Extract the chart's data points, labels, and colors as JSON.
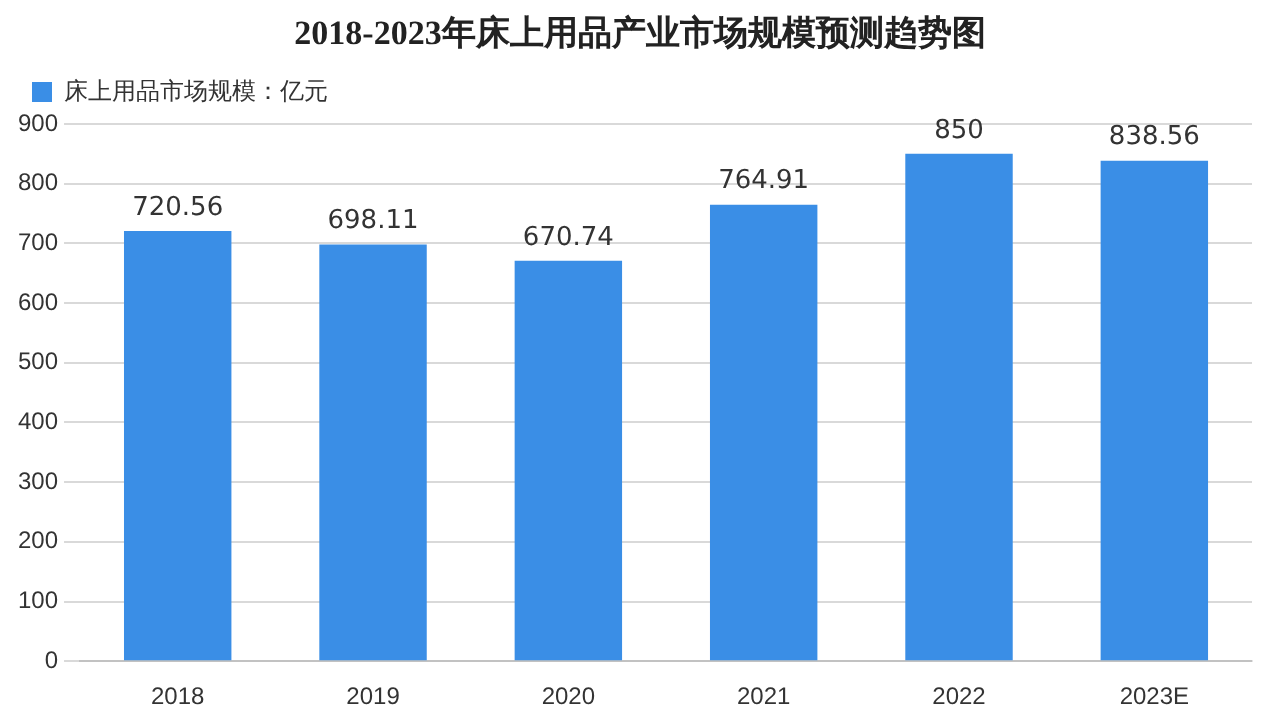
{
  "chart_data": {
    "type": "bar",
    "title": "2018-2023年床上用品产业市场规模预测趋势图",
    "categories": [
      "2018",
      "2019",
      "2020",
      "2021",
      "2022",
      "2023E"
    ],
    "series": [
      {
        "name": "床上用品市场规模：亿元",
        "color": "#3a8ee6",
        "values": [
          720.56,
          698.11,
          670.74,
          764.91,
          850,
          838.56
        ]
      }
    ],
    "ylim": [
      0,
      900
    ],
    "yticks": [
      0,
      100,
      200,
      300,
      400,
      500,
      600,
      700,
      800,
      900
    ],
    "grid": "y",
    "legend": "top left",
    "data_labels": true
  }
}
